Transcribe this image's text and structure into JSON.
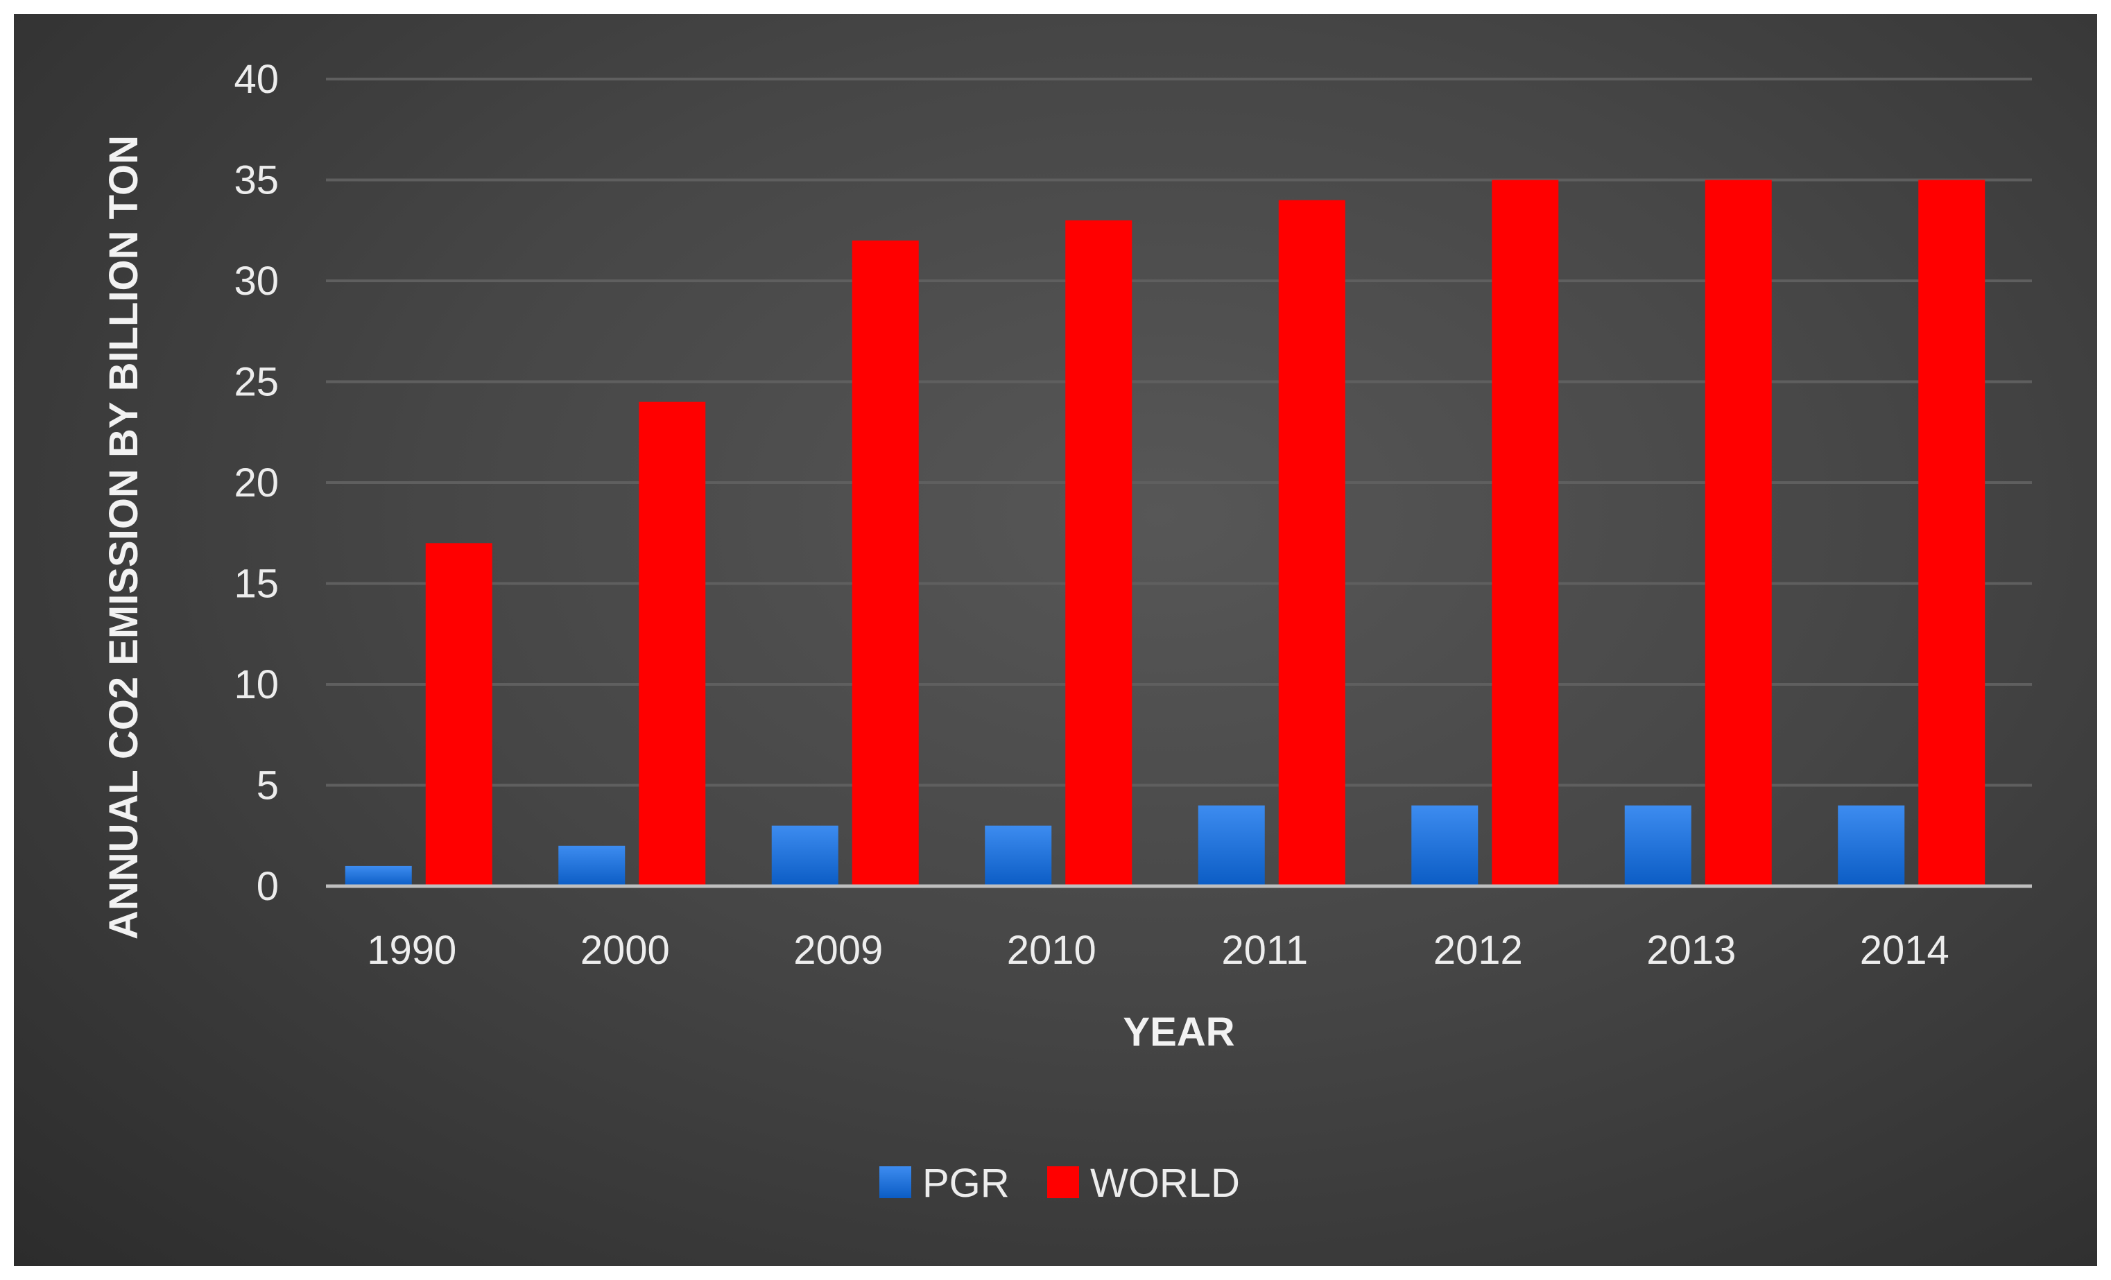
{
  "chart_data": {
    "type": "bar",
    "title": "",
    "xlabel": "YEAR",
    "ylabel": "ANNUAL CO2 EMISSION BY BILLION TON",
    "categories": [
      "1990",
      "2000",
      "2009",
      "2010",
      "2011",
      "2012",
      "2013",
      "2014"
    ],
    "series": [
      {
        "name": "PGR",
        "color": "#1f6fd6",
        "values": [
          1,
          2,
          3,
          3,
          4,
          4,
          4,
          4
        ]
      },
      {
        "name": "WORLD",
        "color": "#ff0000",
        "values": [
          17,
          24,
          32,
          33,
          34,
          35,
          35,
          35
        ]
      }
    ],
    "ylim": [
      0,
      40
    ],
    "yticks": [
      0,
      5,
      10,
      15,
      20,
      25,
      30,
      35,
      40
    ],
    "grid": true,
    "legend_position": "bottom-center",
    "colors": {
      "background": "#444444",
      "gridline": "#5f5f5f",
      "axis": "#bfbfbf",
      "text": "#ededed"
    }
  }
}
